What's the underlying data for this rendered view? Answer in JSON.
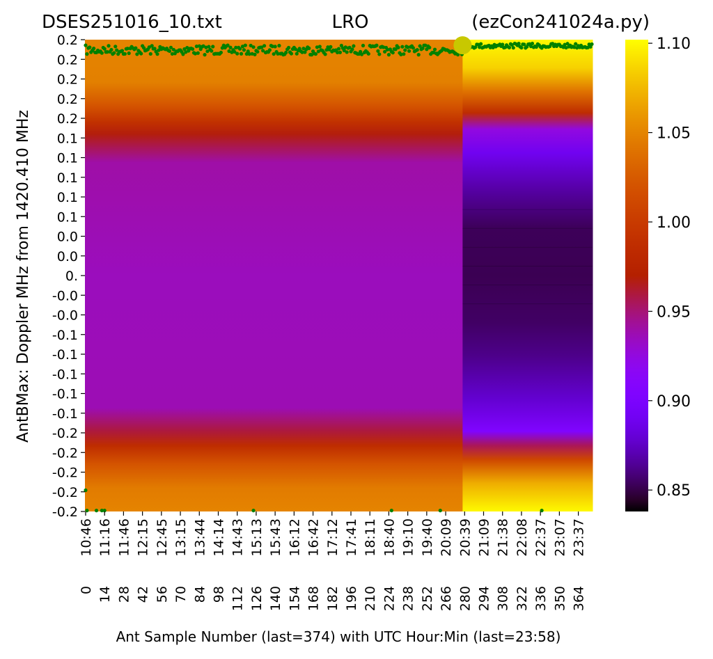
{
  "chart_data": {
    "type": "heatmap",
    "title_left": "DSES251016_10.txt",
    "title_center": "LRO",
    "title_right": "(ezCon241024a.py)",
    "xlabel": "Ant Sample Number (last=374) with UTC Hour:Min (last=23:58)",
    "ylabel": "AntBMax:  Doppler MHz from 1420.410 MHz",
    "colormap": "gnuplot",
    "colorbar": {
      "ticks": [
        0.85,
        0.9,
        0.95,
        1.0,
        1.05,
        1.1
      ],
      "tick_labels": [
        "0.85",
        "0.90",
        "0.95",
        "1.00",
        "1.05",
        "1.10"
      ],
      "range": [
        0.838,
        1.102
      ]
    },
    "x_samples": 375,
    "x_tick_samples": [
      0,
      14,
      28,
      42,
      56,
      70,
      84,
      98,
      112,
      126,
      140,
      154,
      168,
      182,
      196,
      210,
      224,
      238,
      252,
      266,
      280,
      294,
      308,
      322,
      336,
      350,
      364
    ],
    "x_tick_times": [
      "10:46",
      "11:16",
      "11:46",
      "12:15",
      "12:45",
      "13:15",
      "13:44",
      "14:14",
      "14:43",
      "15:13",
      "15:43",
      "16:12",
      "16:42",
      "17:12",
      "17:41",
      "18:11",
      "18:40",
      "19:10",
      "19:40",
      "20:09",
      "20:39",
      "21:09",
      "21:38",
      "22:08",
      "22:37",
      "23:07",
      "23:37"
    ],
    "y_tick_labels": [
      "0.2",
      "0.2",
      "0.2",
      "0.2",
      "0.2",
      "0.1",
      "0.1",
      "0.1",
      "0.1",
      "0.1",
      "0.0",
      "0.0",
      "0.",
      "-0.0",
      "-0.0",
      "-0.1",
      "-0.1",
      "-0.1",
      "-0.1",
      "-0.1",
      "-0.2",
      "-0.2",
      "-0.2",
      "-0.2",
      "-0.2"
    ],
    "regions": [
      {
        "sample_start": 0,
        "sample_end": 279,
        "profile": [
          [
            0.0,
            1.05
          ],
          [
            0.09,
            1.048
          ],
          [
            0.14,
            1.02
          ],
          [
            0.175,
            0.99
          ],
          [
            0.2,
            0.968
          ],
          [
            0.26,
            0.94
          ],
          [
            0.5,
            0.935
          ],
          [
            0.78,
            0.937
          ],
          [
            0.83,
            0.96
          ],
          [
            0.86,
            0.985
          ],
          [
            0.9,
            1.02
          ],
          [
            0.95,
            1.045
          ],
          [
            1.0,
            1.05
          ]
        ]
      },
      {
        "sample_start": 279,
        "sample_end": 375,
        "profile": [
          [
            0.0,
            1.1
          ],
          [
            0.06,
            1.085
          ],
          [
            0.11,
            1.04
          ],
          [
            0.155,
            0.985
          ],
          [
            0.19,
            0.925
          ],
          [
            0.24,
            0.89
          ],
          [
            0.33,
            0.865
          ],
          [
            0.4,
            0.853
          ],
          [
            0.5,
            0.852
          ],
          [
            0.6,
            0.855
          ],
          [
            0.67,
            0.862
          ],
          [
            0.76,
            0.878
          ],
          [
            0.83,
            0.905
          ],
          [
            0.86,
            0.955
          ],
          [
            0.89,
            1.01
          ],
          [
            0.94,
            1.07
          ],
          [
            1.0,
            1.1
          ]
        ]
      }
    ],
    "marker": {
      "sample": 279,
      "frac": 0.012,
      "color": "#c8c800"
    },
    "dot_color": "#008000",
    "top_dots_seed": 7,
    "bottom_dots": [
      {
        "sample": 0,
        "frac": 0.955
      },
      {
        "sample": 1,
        "frac": 0.998
      },
      {
        "sample": 8,
        "frac": 0.998
      },
      {
        "sample": 12,
        "frac": 0.998
      },
      {
        "sample": 14,
        "frac": 0.998
      },
      {
        "sample": 124,
        "frac": 0.998
      },
      {
        "sample": 226,
        "frac": 0.998
      },
      {
        "sample": 262,
        "frac": 0.998
      },
      {
        "sample": 337,
        "frac": 0.998
      }
    ]
  }
}
